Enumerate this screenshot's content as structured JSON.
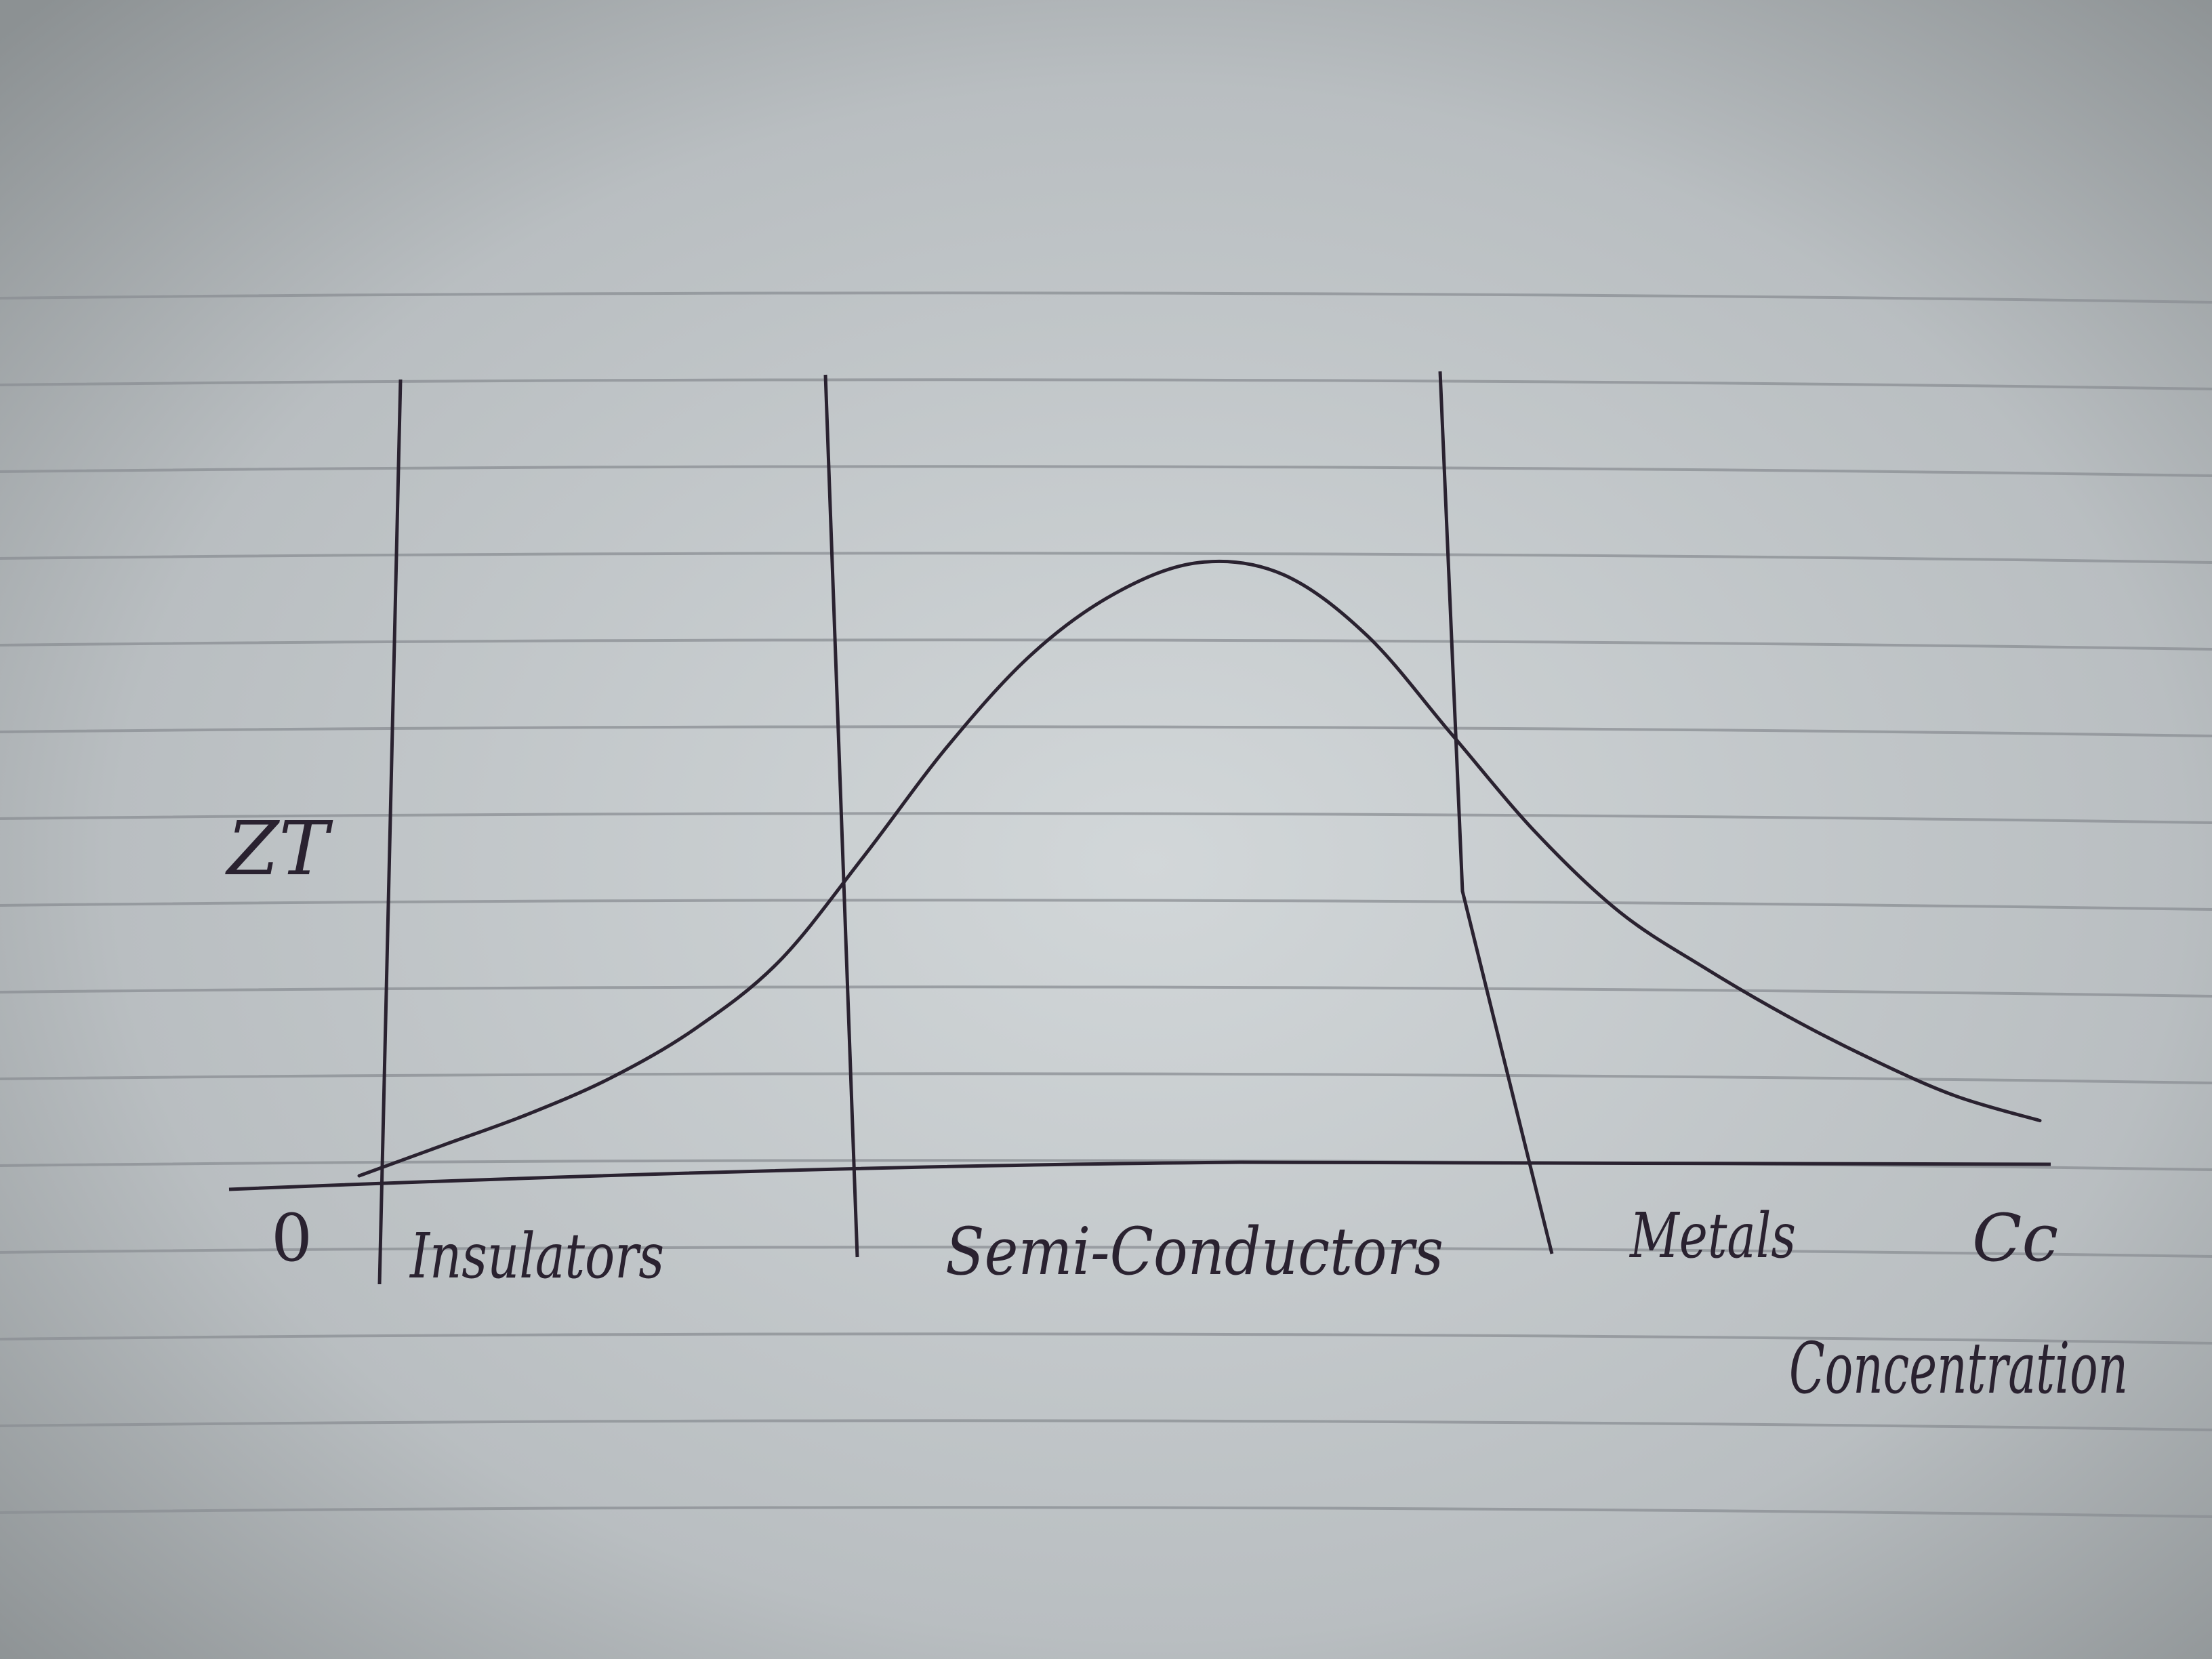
{
  "chart_data": {
    "type": "line",
    "title": "",
    "ylabel": "ZT",
    "xlabel": "Concentration",
    "x_origin_label": "0",
    "x_end_label": "Cc",
    "regions": [
      "Insulators",
      "Semi-Conductors",
      "Metals"
    ],
    "series": [
      {
        "x": [
          0.0,
          0.05,
          0.1,
          0.15,
          0.2,
          0.25,
          0.3,
          0.35,
          0.4,
          0.45,
          0.5,
          0.55,
          0.6,
          0.65,
          0.7,
          0.75,
          0.8,
          0.85,
          0.9,
          0.95,
          1.0
        ],
        "y": [
          0.0,
          0.05,
          0.1,
          0.16,
          0.24,
          0.35,
          0.52,
          0.7,
          0.85,
          0.95,
          1.0,
          0.98,
          0.88,
          0.72,
          0.56,
          0.43,
          0.34,
          0.26,
          0.19,
          0.13,
          0.09
        ]
      }
    ],
    "grid": false,
    "legend": "none"
  },
  "colors": {
    "paper": "#c9ced0",
    "rule_line": "#8a8e93",
    "ink": "#2a2230"
  }
}
